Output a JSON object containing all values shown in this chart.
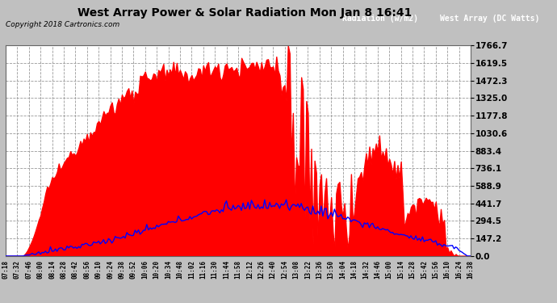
{
  "title": "West Array Power & Solar Radiation Mon Jan 8 16:41",
  "copyright": "Copyright 2018 Cartronics.com",
  "bg_color": "#c0c0c0",
  "plot_bg_color": "#ffffff",
  "grid_color": "#999999",
  "yticks": [
    0.0,
    147.2,
    294.5,
    441.7,
    588.9,
    736.1,
    883.4,
    1030.6,
    1177.8,
    1325.0,
    1472.3,
    1619.5,
    1766.7
  ],
  "ymax": 1766.7,
  "xtick_labels": [
    "07:18",
    "07:32",
    "07:46",
    "08:00",
    "08:14",
    "08:28",
    "08:42",
    "08:56",
    "09:10",
    "09:24",
    "09:38",
    "09:52",
    "10:06",
    "10:20",
    "10:34",
    "10:48",
    "11:02",
    "11:16",
    "11:30",
    "11:44",
    "11:58",
    "12:12",
    "12:26",
    "12:40",
    "12:54",
    "13:08",
    "13:22",
    "13:36",
    "13:50",
    "14:04",
    "14:18",
    "14:32",
    "14:46",
    "15:00",
    "15:14",
    "15:28",
    "15:42",
    "15:56",
    "16:10",
    "16:24",
    "16:38"
  ],
  "legend_radiation_bg": "#0000cc",
  "legend_westarray_bg": "#cc0000",
  "legend_radiation_label": "Radiation (w/m2)",
  "legend_westarray_label": "West Array (DC Watts)"
}
